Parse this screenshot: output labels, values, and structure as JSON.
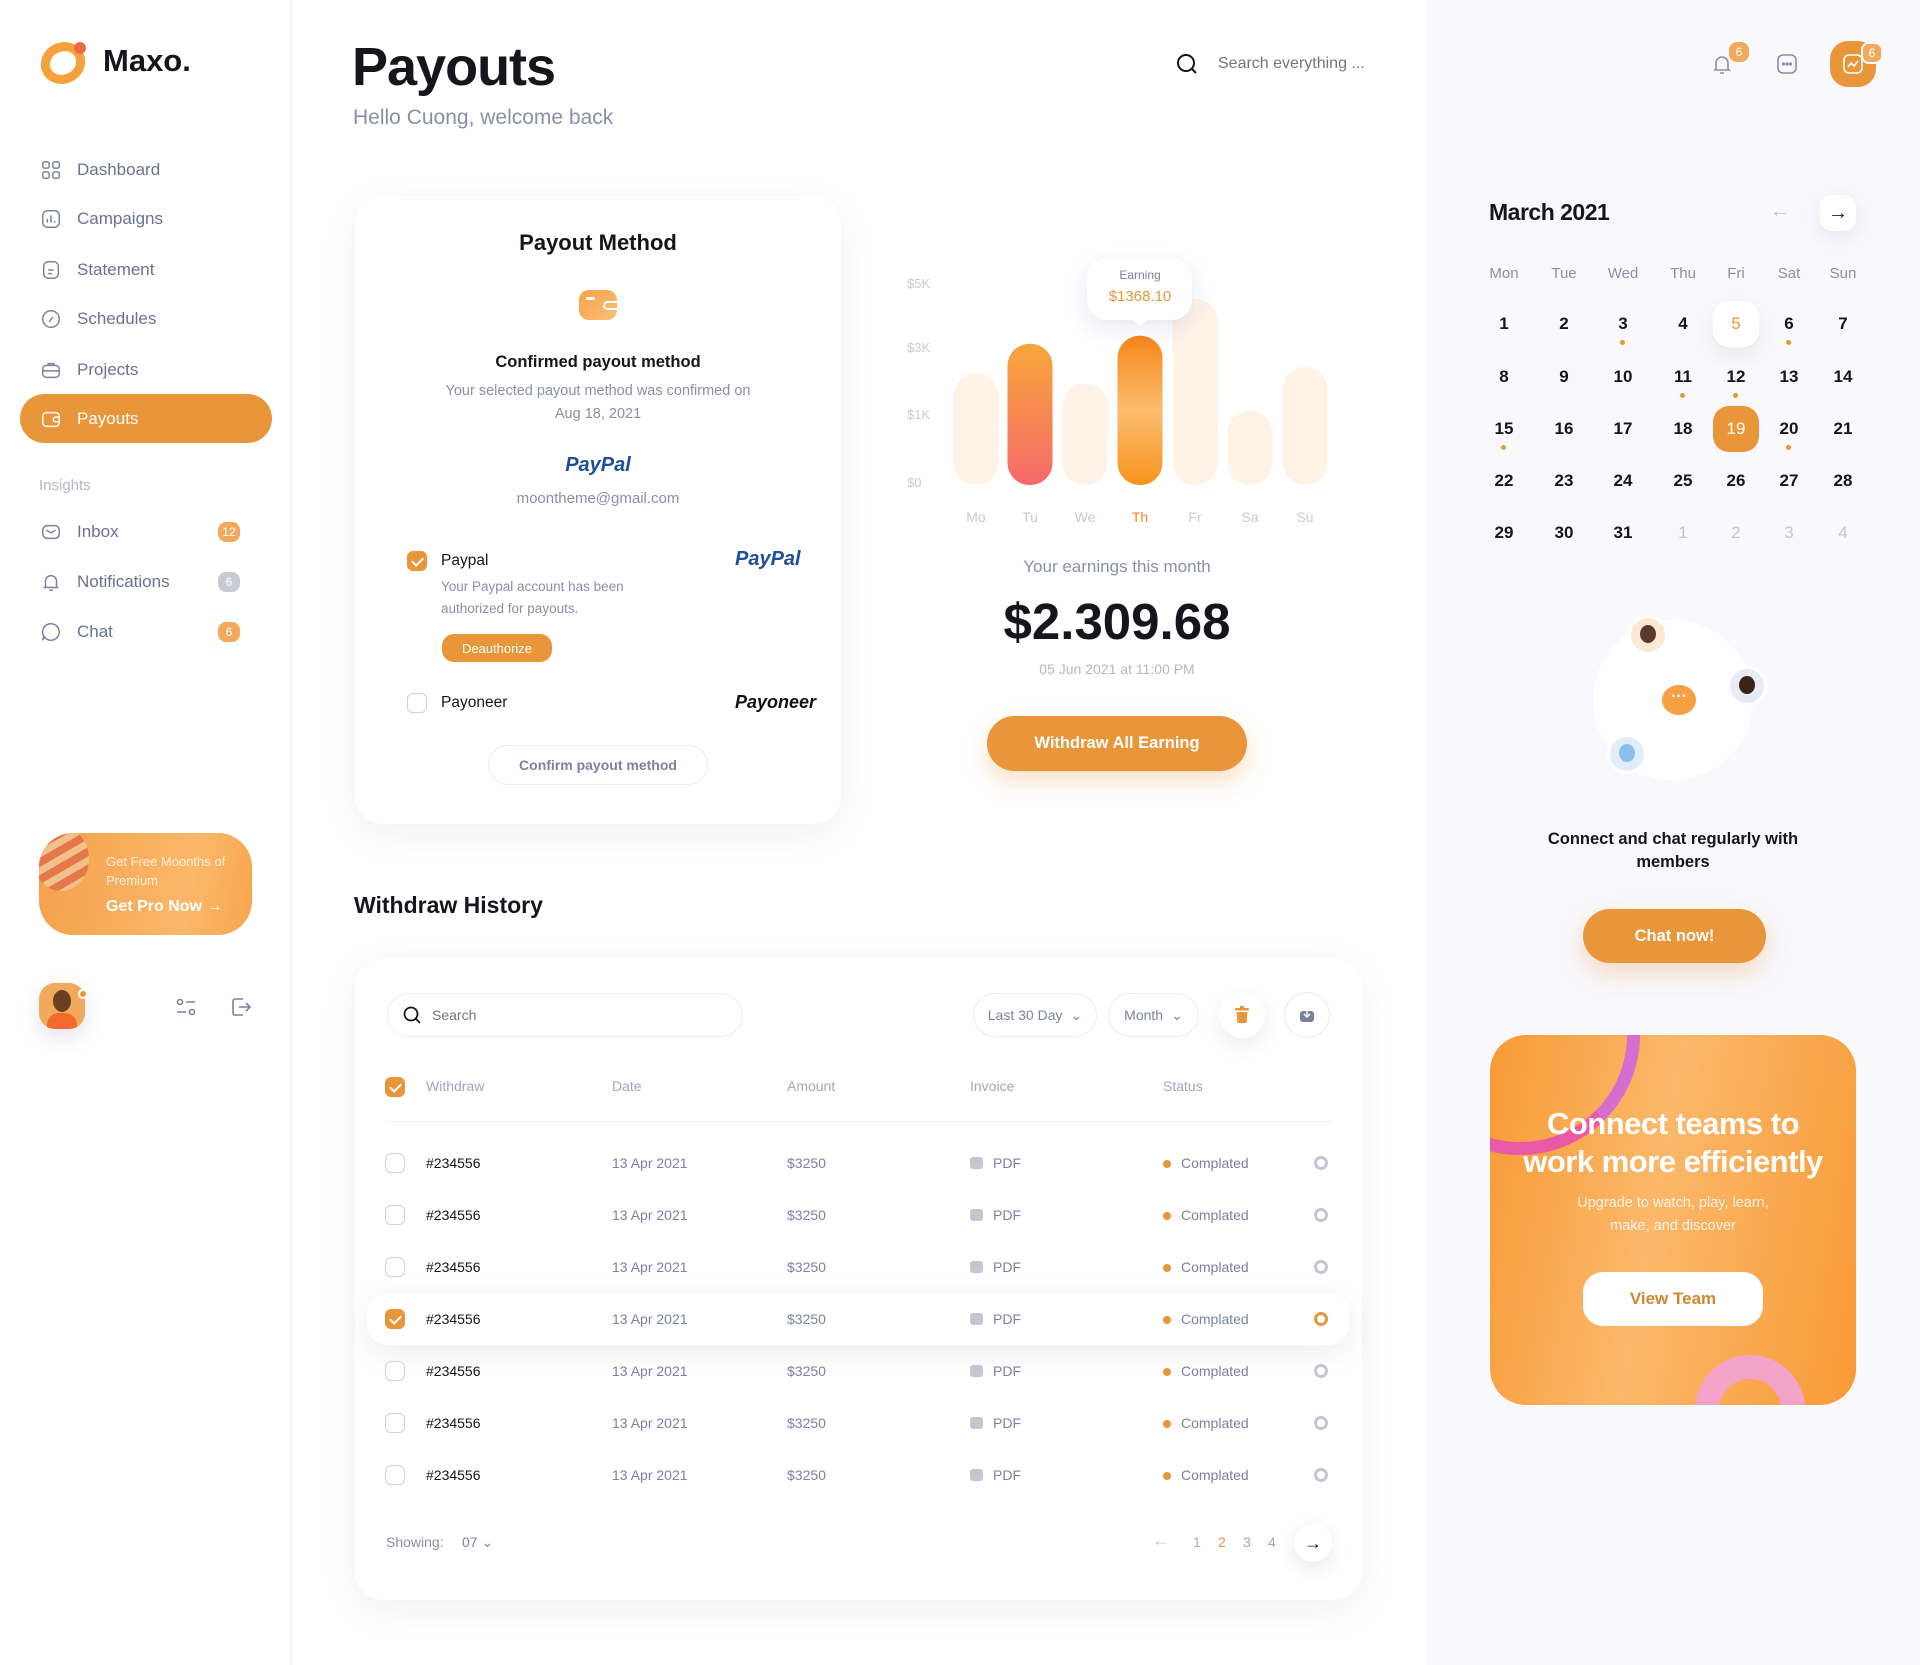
{
  "brand": {
    "name": "Maxo."
  },
  "sidebar": {
    "items": [
      {
        "label": "Dashboard",
        "icon": "grid-icon"
      },
      {
        "label": "Campaigns",
        "icon": "bar-chart-icon"
      },
      {
        "label": "Statement",
        "icon": "document-icon"
      },
      {
        "label": "Schedules",
        "icon": "gauge-icon"
      },
      {
        "label": "Projects",
        "icon": "briefcase-icon"
      },
      {
        "label": "Payouts",
        "icon": "wallet-icon",
        "active": true
      }
    ],
    "insights_label": "Insights",
    "insights": [
      {
        "label": "Inbox",
        "icon": "mail-icon",
        "badge": "12",
        "badge_color": "#f1a95b"
      },
      {
        "label": "Notifications",
        "icon": "bell-icon",
        "badge": "6",
        "badge_color": "#c9cad6"
      },
      {
        "label": "Chat",
        "icon": "chat-icon",
        "badge": "6",
        "badge_color": "#f1a95b"
      }
    ],
    "promo": {
      "text": "Get Free Moonths of Premium",
      "cta": "Get Pro Now"
    }
  },
  "header": {
    "title": "Payouts",
    "subtitle": "Hello Cuong, welcome back",
    "search_placeholder": "Search everything ...",
    "notification_count": "6",
    "activity_count": "6"
  },
  "payout_method": {
    "title": "Payout Method",
    "confirmed_title": "Confirmed payout method",
    "confirmed_desc": "Your selected payout method was confirmed on Aug 18, 2021",
    "provider_logo": "PayPal",
    "email": "moontheme@gmail.com",
    "options": [
      {
        "name": "Paypal",
        "logo": "PayPal",
        "checked": true,
        "desc": "Your Paypal account has been authorized for payouts.",
        "action": "Deauthorize"
      },
      {
        "name": "Payoneer",
        "logo": "Payoneer",
        "checked": false
      }
    ],
    "confirm_button": "Confirm payout method"
  },
  "chart_data": {
    "type": "bar",
    "categories": [
      "Mo",
      "Tu",
      "We",
      "Th",
      "Fr",
      "Sa",
      "Su"
    ],
    "values": [
      2200,
      3100,
      1900,
      3350,
      4500,
      1100,
      2400
    ],
    "highlighted": [
      "Tu",
      "Th"
    ],
    "active": "Th",
    "y_ticks": [
      "$0",
      "$1K",
      "$3K",
      "$5K"
    ],
    "tooltip": {
      "label": "Earning",
      "value": "$1368.10"
    },
    "accent": "#f7931e"
  },
  "earnings": {
    "label": "Your earnings this month",
    "amount": "$2.309.68",
    "date": "05 Jun 2021 at 11:00 PM",
    "withdraw_button": "Withdraw All Earning"
  },
  "history": {
    "title": "Withdraw History",
    "search_placeholder": "Search",
    "filter_range": "Last 30 Day",
    "filter_period": "Month",
    "columns": [
      "Withdraw",
      "Date",
      "Amount",
      "Invoice",
      "Status"
    ],
    "rows": [
      {
        "id": "#234556",
        "date": "13 Apr 2021",
        "amount": "$3250",
        "invoice": "PDF",
        "status": "Complated",
        "checked": false
      },
      {
        "id": "#234556",
        "date": "13 Apr 2021",
        "amount": "$3250",
        "invoice": "PDF",
        "status": "Complated",
        "checked": false
      },
      {
        "id": "#234556",
        "date": "13 Apr 2021",
        "amount": "$3250",
        "invoice": "PDF",
        "status": "Complated",
        "checked": false
      },
      {
        "id": "#234556",
        "date": "13 Apr 2021",
        "amount": "$3250",
        "invoice": "PDF",
        "status": "Complated",
        "checked": true
      },
      {
        "id": "#234556",
        "date": "13 Apr 2021",
        "amount": "$3250",
        "invoice": "PDF",
        "status": "Complated",
        "checked": false
      },
      {
        "id": "#234556",
        "date": "13 Apr 2021",
        "amount": "$3250",
        "invoice": "PDF",
        "status": "Complated",
        "checked": false
      },
      {
        "id": "#234556",
        "date": "13 Apr 2021",
        "amount": "$3250",
        "invoice": "PDF",
        "status": "Complated",
        "checked": false
      }
    ],
    "showing_label": "Showing:",
    "showing_value": "07",
    "pages": [
      "1",
      "2",
      "3",
      "4"
    ],
    "current_page": "2"
  },
  "calendar": {
    "title": "March 2021",
    "weekdays": [
      "Mon",
      "Tue",
      "Wed",
      "Thu",
      "Fri",
      "Sat",
      "Sun"
    ],
    "days": [
      "1",
      "2",
      "3",
      "4",
      "5",
      "6",
      "7",
      "8",
      "9",
      "10",
      "11",
      "12",
      "13",
      "14",
      "15",
      "16",
      "17",
      "18",
      "19",
      "20",
      "21",
      "22",
      "23",
      "24",
      "25",
      "26",
      "27",
      "28",
      "29",
      "30",
      "31"
    ],
    "trailing_days": [
      "1",
      "2",
      "3",
      "4"
    ],
    "today": "5",
    "selected": "19",
    "event_days": [
      "3",
      "6",
      "11",
      "12",
      "15",
      "20"
    ]
  },
  "chat_promo": {
    "text": "Connect and chat regularly with members",
    "button": "Chat now!"
  },
  "team_promo": {
    "title": "Connect teams to work more efficiently",
    "desc": "Upgrade to watch, play, learn, make, and discover",
    "button": "View Team"
  },
  "colors": {
    "accent": "#e9963a",
    "muted": "#8a8fa8",
    "panel": "#f9f8fc"
  }
}
